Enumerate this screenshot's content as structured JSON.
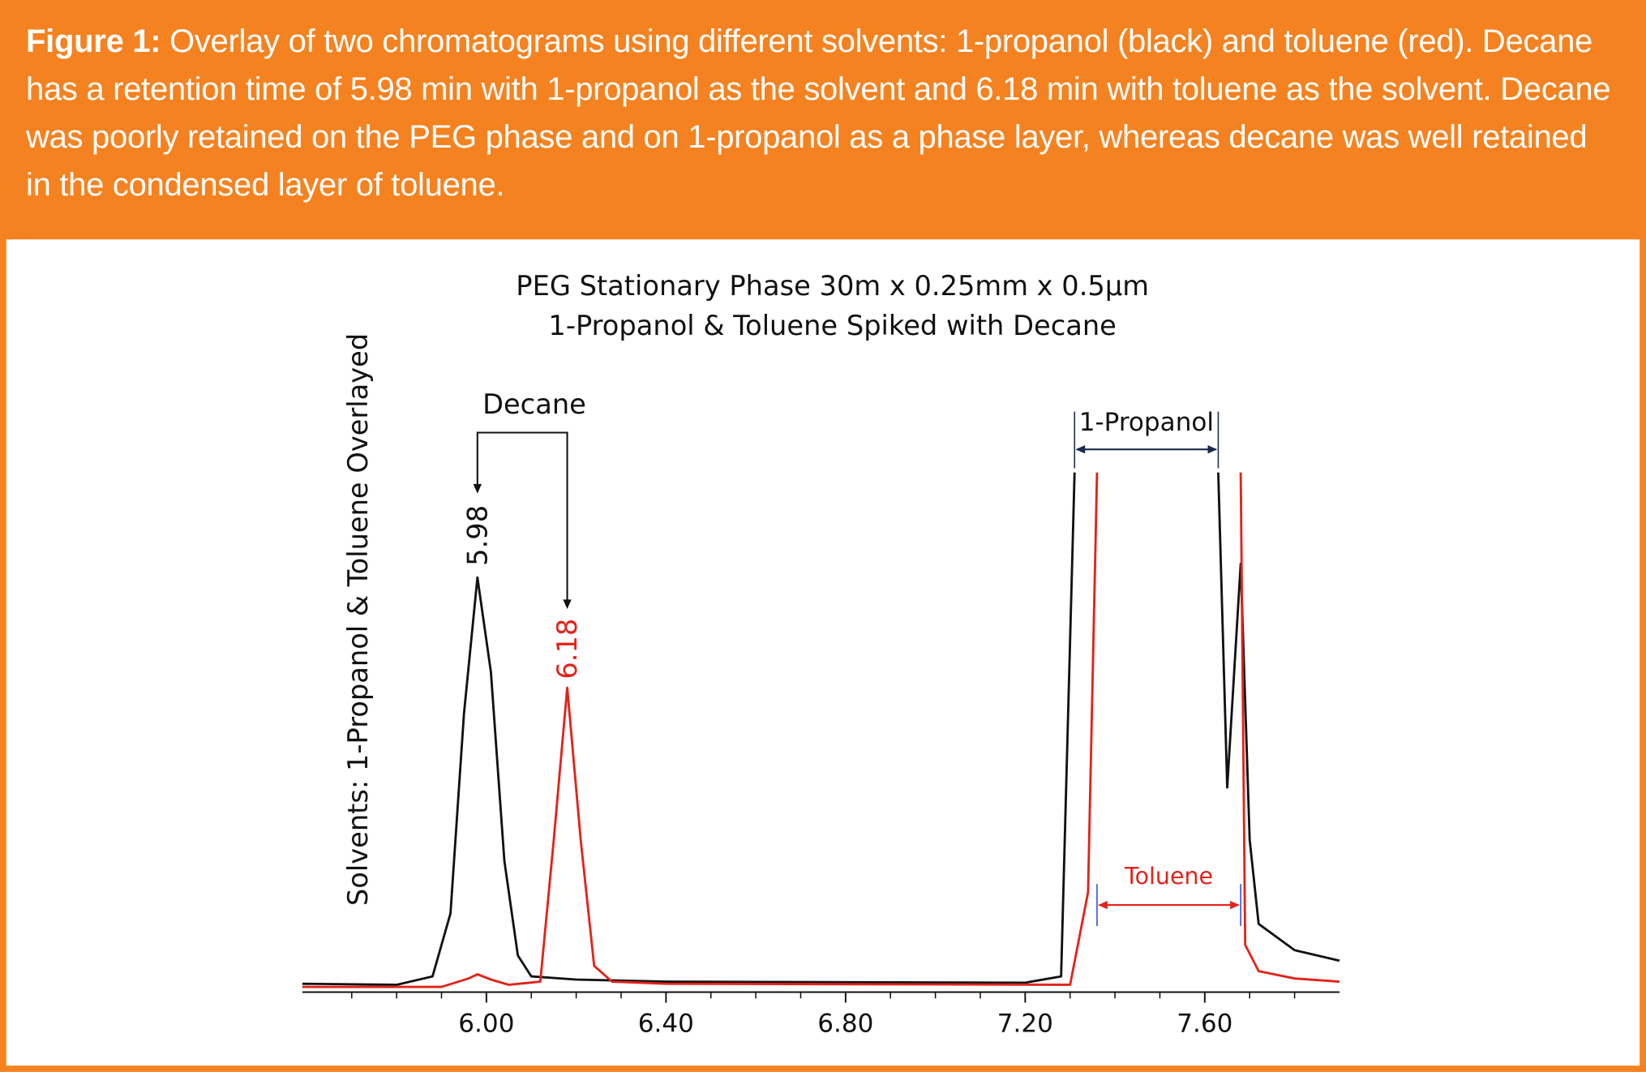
{
  "caption_label": "Figure 1:",
  "caption_text": "Overlay of two chromatograms using different solvents: 1-propanol (black) and toluene (red). Decane has a retention time of 5.98 min with 1-propanol as the solvent and 6.18 min with toluene as the solvent. Decane was poorly retained on the PEG phase and on 1-propanol as a phase layer, whereas decane was well retained in the condensed layer of toluene.",
  "chart_data": {
    "type": "line",
    "title": [
      "PEG Stationary Phase 30m x 0.25mm x 0.5µm",
      "1-Propanol & Toluene Spiked with Decane"
    ],
    "y_label": "Solvents:  1-Propanol & Toluene Overlayed",
    "xlim": [
      5.59,
      7.9
    ],
    "ylim": [
      0,
      100
    ],
    "xticks": [
      {
        "value": 6.0,
        "label": "6.00"
      },
      {
        "value": 6.4,
        "label": "6.40"
      },
      {
        "value": 6.8,
        "label": "6.80"
      },
      {
        "value": 7.2,
        "label": "7.20"
      },
      {
        "value": 7.6,
        "label": "7.60"
      }
    ],
    "xminorticks": [
      5.7,
      5.8,
      5.9,
      6.1,
      6.2,
      6.3,
      6.5,
      6.6,
      6.7,
      6.9,
      7.0,
      7.1,
      7.3,
      7.4,
      7.5,
      7.7,
      7.8
    ],
    "series": [
      {
        "name": "1-Propanol",
        "color": "#111111",
        "x": [
          5.59,
          5.8,
          5.88,
          5.92,
          5.95,
          5.98,
          6.01,
          6.04,
          6.07,
          6.1,
          6.2,
          6.4,
          7.2,
          7.28,
          7.31,
          7.47,
          7.63,
          7.65,
          7.68,
          7.7,
          7.72,
          7.8,
          7.9
        ],
        "values": [
          1.6,
          1.4,
          3,
          15,
          53,
          79,
          61,
          25,
          7,
          3,
          2.4,
          2,
          1.8,
          3,
          99,
          null,
          99,
          39,
          81.6,
          29,
          13,
          8,
          6
        ]
      },
      {
        "name": "Toluene",
        "color": "#e2231a",
        "x": [
          5.59,
          5.9,
          5.96,
          5.98,
          6.01,
          6.05,
          6.12,
          6.15,
          6.18,
          6.21,
          6.24,
          6.28,
          6.4,
          7.3,
          7.34,
          7.36,
          7.52,
          7.68,
          7.69,
          7.72,
          7.8,
          7.9
        ],
        "values": [
          1,
          1,
          2.6,
          3.4,
          2.4,
          1.4,
          2,
          29,
          58,
          29,
          5,
          2,
          1.6,
          1.4,
          19,
          99,
          null,
          99,
          9,
          4,
          2.6,
          2
        ]
      }
    ],
    "annotation": "Decane",
    "peaks": [
      {
        "x": 5.98,
        "series": 0
      },
      {
        "x": 6.18,
        "series": 1
      }
    ],
    "brackets": [
      {
        "text": "1-Propanol",
        "x": [
          7.31,
          7.63
        ],
        "series": 0
      },
      {
        "text": "Toluene",
        "x": [
          7.36,
          7.68
        ],
        "series": 1
      }
    ]
  }
}
